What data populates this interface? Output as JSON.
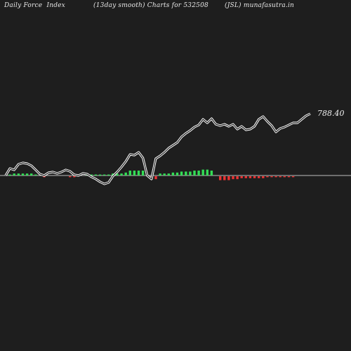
{
  "header": {
    "left": "Daily Force  Index",
    "middle": "(13day smooth) Charts for 532508",
    "right": "(JSL) munafasutra.in"
  },
  "colors": {
    "background": "#1e1e1e",
    "line": "#ffffff",
    "zero_line": "#bfbfbf",
    "positive_bar": "#33dd55",
    "negative_bar": "#ee3333"
  },
  "chart_data": {
    "type": "line",
    "title": "",
    "xlabel": "",
    "ylabel": "",
    "grid": false,
    "legend": "none",
    "last_value_label": "788.40",
    "ylim": [
      -15,
      100
    ],
    "series": [
      {
        "values": [
          0,
          10,
          8,
          16,
          18,
          17,
          14,
          8,
          2,
          0,
          4,
          5,
          3,
          5,
          8,
          6,
          1,
          0,
          3,
          2,
          -2,
          -5,
          -9,
          -12,
          -10,
          -1,
          5,
          12,
          20,
          30,
          29,
          33,
          25,
          0,
          -5,
          24,
          28,
          33,
          39,
          43,
          47,
          55,
          60,
          64,
          69,
          72,
          80,
          75,
          81,
          73,
          71,
          73,
          70,
          73,
          66,
          70,
          65,
          66,
          70,
          80,
          84,
          77,
          71,
          62,
          67,
          69,
          72,
          75,
          75,
          80,
          85,
          88
        ]
      },
      {
        "name": "",
        "kind": "bar",
        "values": [
          0,
          1,
          2,
          2,
          2,
          2,
          2,
          1,
          0,
          -1,
          0,
          0,
          0,
          0,
          0,
          -1,
          -1,
          0,
          0,
          1,
          1,
          1,
          1,
          1,
          1,
          2,
          2,
          2,
          3,
          5,
          5,
          5,
          5,
          0,
          -3,
          -3,
          2,
          2,
          2,
          3,
          3,
          4,
          4,
          4,
          5,
          5,
          6,
          6,
          5,
          0,
          -4,
          -4,
          -4,
          -3,
          -3,
          -2,
          -2,
          -2,
          -2,
          -2,
          -2,
          -1,
          -1,
          -1,
          -1,
          -1,
          -1,
          -1,
          0,
          0,
          0,
          0
        ]
      }
    ]
  }
}
